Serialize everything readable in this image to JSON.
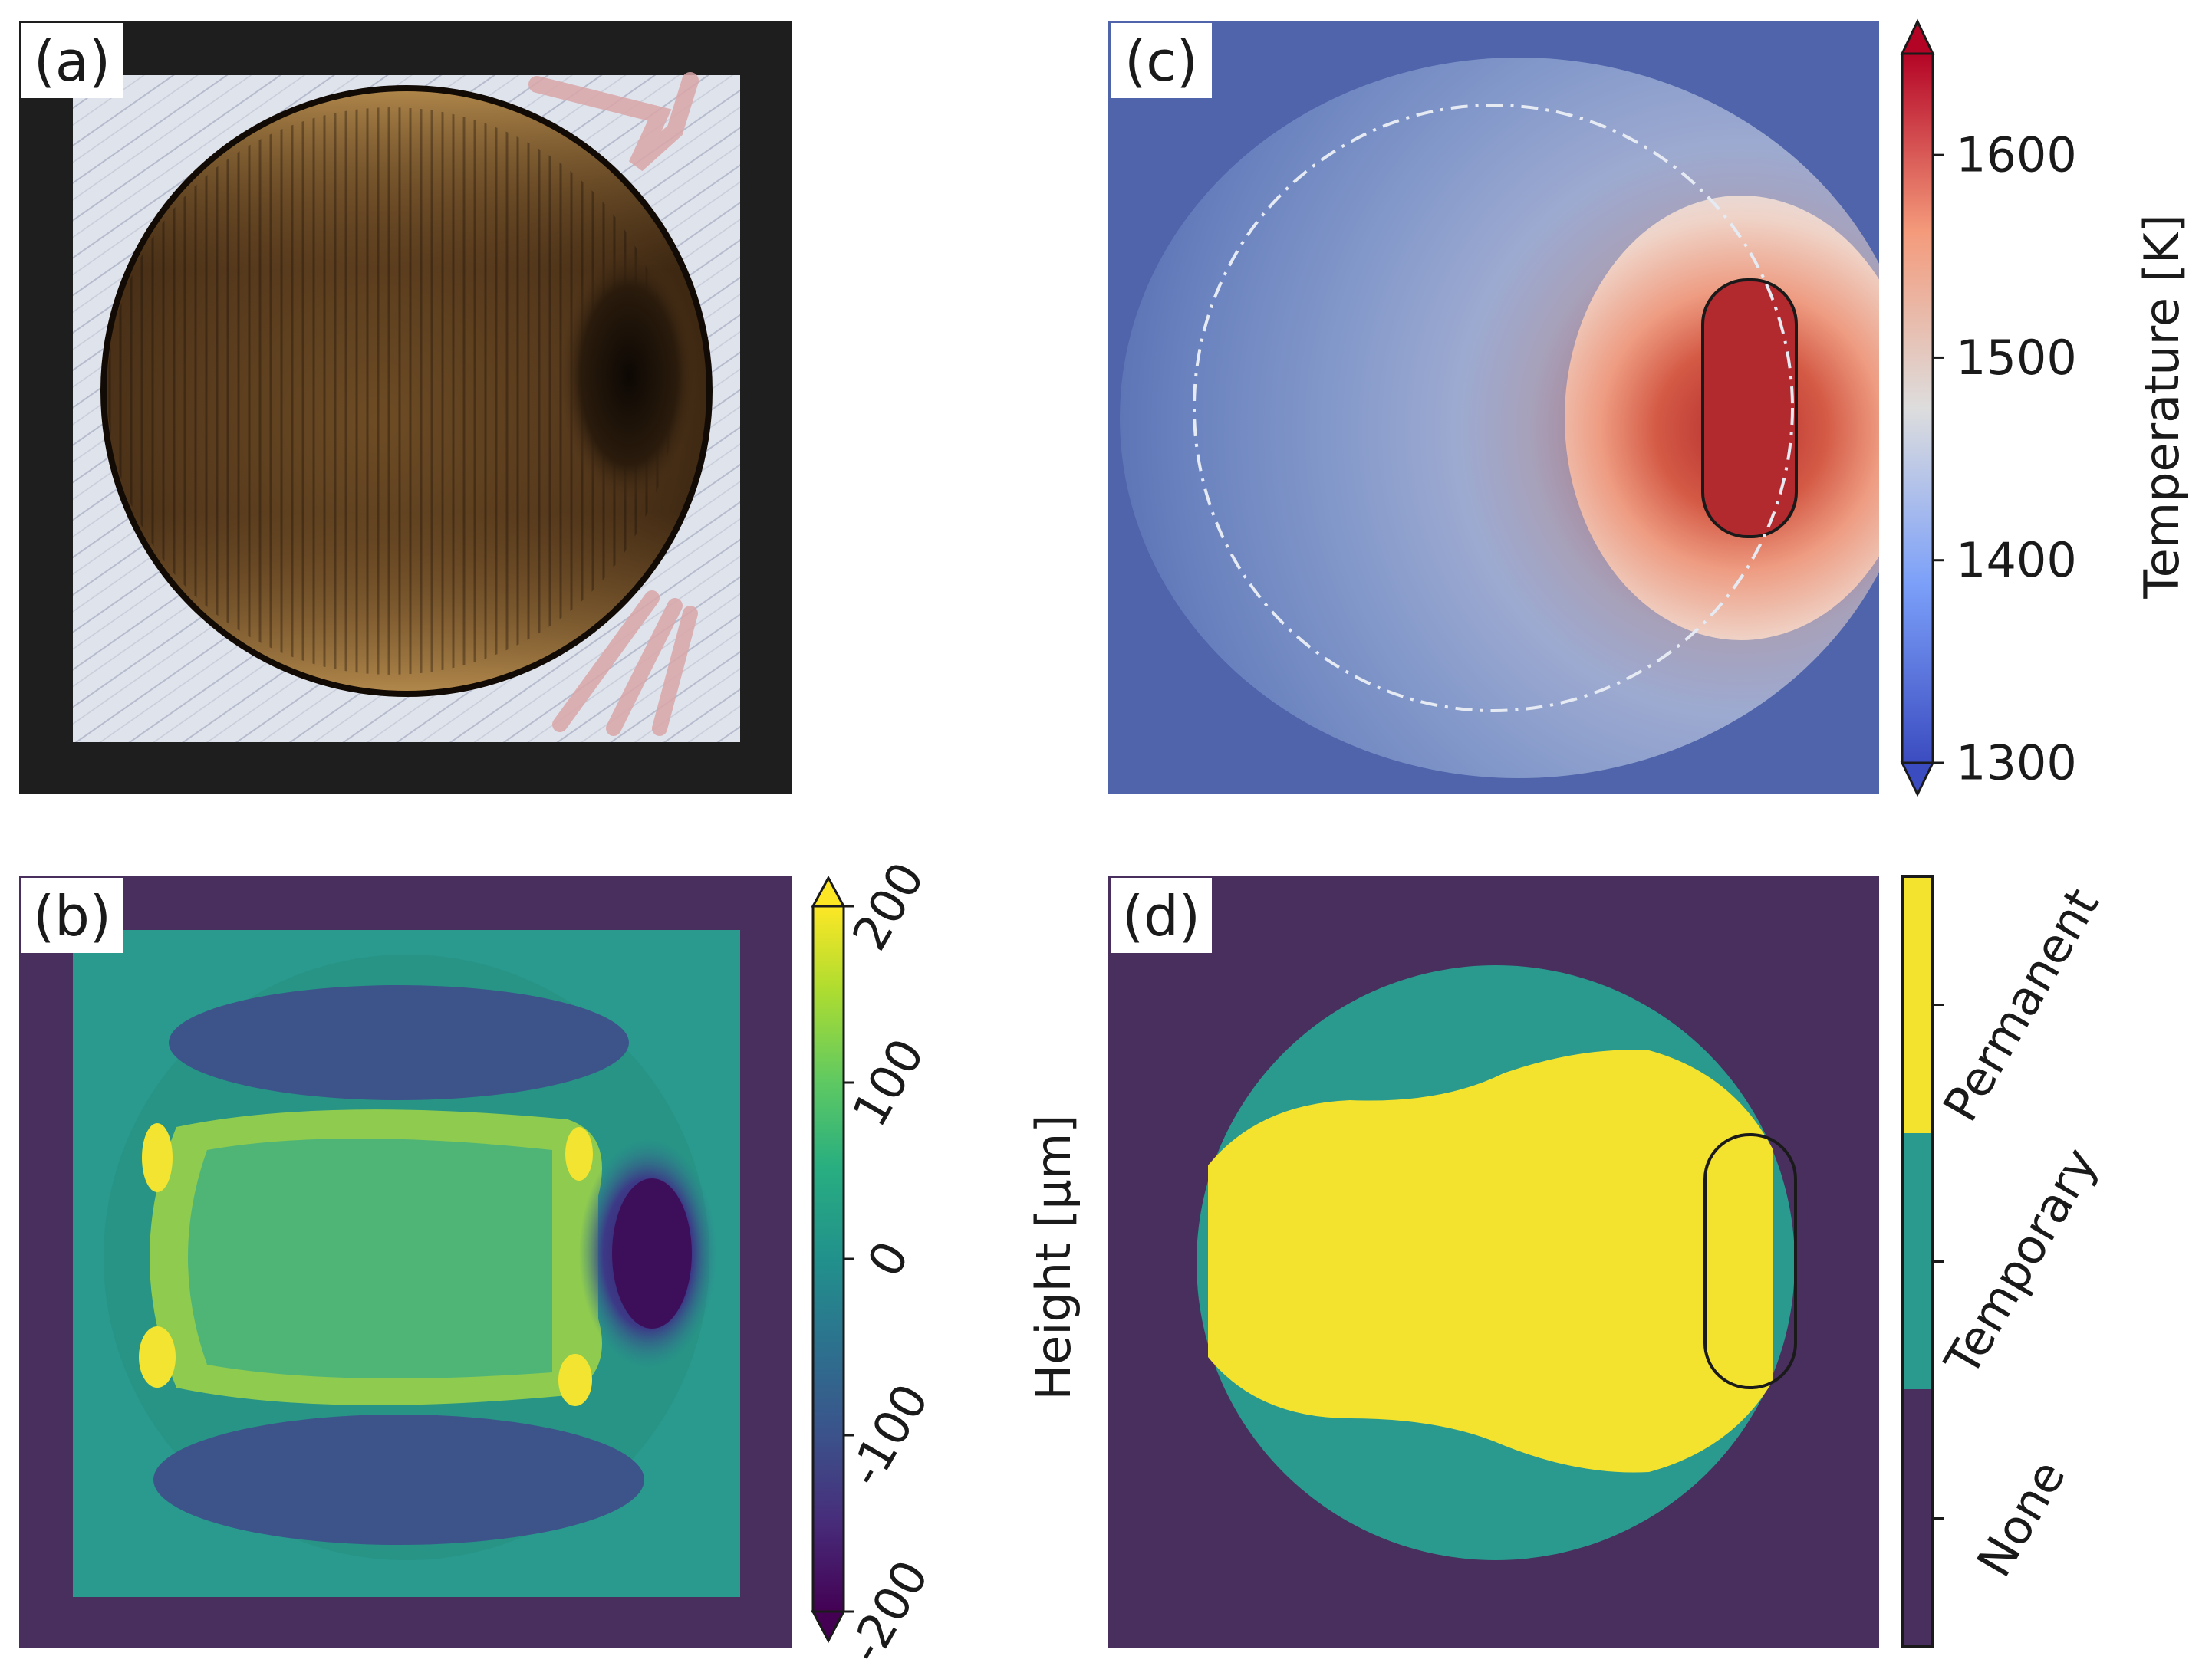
{
  "figure": {
    "panels": [
      {
        "label": "(a)",
        "content": "micrograph of circular sample"
      },
      {
        "label": "(b)",
        "content": "height map"
      },
      {
        "label": "(c)",
        "content": "temperature field"
      },
      {
        "label": "(d)",
        "content": "phase map"
      }
    ]
  },
  "chart_data": [
    {
      "type": "heatmap",
      "panel": "(b)",
      "colormap": "viridis",
      "colorbar": {
        "label": "Height [µm]",
        "ticks": [
          -200,
          -100,
          0,
          100,
          200
        ],
        "tick_labels": [
          "-200",
          "-100",
          "0",
          "100",
          "200"
        ],
        "range": [
          -200,
          200
        ],
        "extend": "both"
      }
    },
    {
      "type": "heatmap",
      "panel": "(c)",
      "colormap": "coolwarm",
      "colorbar": {
        "label": "Temperature [K]",
        "ticks": [
          1300,
          1400,
          1500,
          1600
        ],
        "tick_labels": [
          "1300",
          "1400",
          "1500",
          "1600"
        ],
        "range": [
          1300,
          1650
        ],
        "extend": "both"
      }
    },
    {
      "type": "heatmap",
      "panel": "(d)",
      "colormap": "categorical",
      "categories": [
        "None",
        "Temporary",
        "Permanent"
      ],
      "colors": [
        "#482f5d",
        "#2a9a8e",
        "#f4e32e"
      ]
    }
  ],
  "colors": {
    "dark_frame": "#1e1e1e",
    "viridis_bg": "#482f5d",
    "coolwarm_bg": "#4f64ab",
    "melt_red": "#b2292e"
  }
}
